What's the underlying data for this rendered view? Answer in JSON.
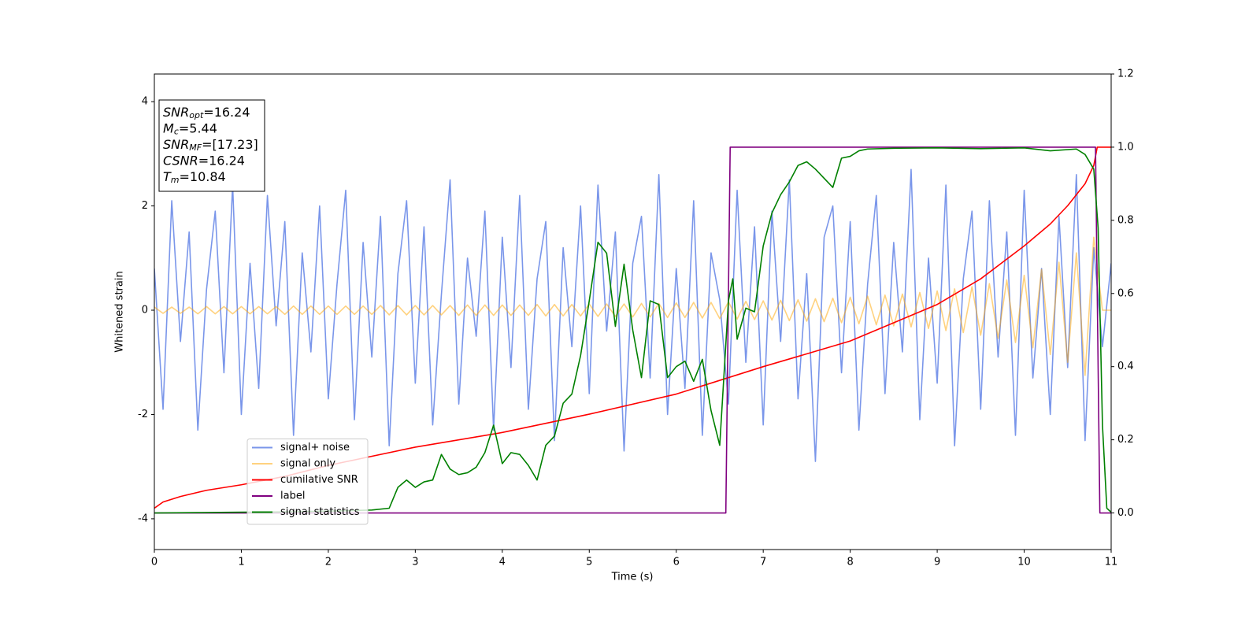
{
  "chart_data": {
    "type": "line",
    "xlabel": "Time (s)",
    "ylabel": "Whitened strain",
    "xlim": [
      0,
      11
    ],
    "ylim": [
      -4.59,
      4.53
    ],
    "y2lim": [
      -0.1,
      1.2
    ],
    "xticks": [
      0,
      1,
      2,
      3,
      4,
      5,
      6,
      7,
      8,
      9,
      10,
      11
    ],
    "yticks": [
      -4,
      -2,
      0,
      2,
      4
    ],
    "y2ticks": [
      {
        "value": 0,
        "label": "0.0"
      },
      0.2,
      0.4,
      0.6,
      0.8,
      {
        "value": 1,
        "label": "1.0"
      },
      1.2
    ],
    "legend_loc": "lower left",
    "annotations": [
      {
        "base": "SNR",
        "sub": "opt",
        "value": "=16.24"
      },
      {
        "base": "M",
        "sub": "c",
        "value": "=5.44"
      },
      {
        "base": "SNR",
        "sub": "MF",
        "value": "=[17.23]"
      },
      {
        "base": "CSNR",
        "value": "=16.24"
      },
      {
        "base": "T",
        "sub": "m",
        "value": "=10.84"
      }
    ],
    "x": [
      0,
      0.1,
      0.2,
      0.3,
      0.4,
      0.5,
      0.6,
      0.7,
      0.8,
      0.9,
      1,
      1.1,
      1.2,
      1.3,
      1.4,
      1.5,
      1.6,
      1.7,
      1.8,
      1.9,
      2,
      2.1,
      2.2,
      2.3,
      2.4,
      2.5,
      2.6,
      2.7,
      2.8,
      2.9,
      3,
      3.1,
      3.2,
      3.3,
      3.4,
      3.5,
      3.6,
      3.7,
      3.8,
      3.9,
      4,
      4.1,
      4.2,
      4.3,
      4.4,
      4.5,
      4.6,
      4.7,
      4.8,
      4.9,
      5,
      5.1,
      5.2,
      5.3,
      5.4,
      5.5,
      5.6,
      5.7,
      5.8,
      5.9,
      6,
      6.1,
      6.2,
      6.3,
      6.4,
      6.5,
      6.6,
      6.7,
      6.8,
      6.9,
      7,
      7.1,
      7.2,
      7.3,
      7.4,
      7.5,
      7.6,
      7.7,
      7.8,
      7.9,
      8,
      8.1,
      8.2,
      8.3,
      8.4,
      8.5,
      8.6,
      8.7,
      8.8,
      8.9,
      9,
      9.1,
      9.2,
      9.3,
      9.4,
      9.5,
      9.6,
      9.7,
      9.8,
      9.9,
      10,
      10.1,
      10.2,
      10.3,
      10.4,
      10.5,
      10.6,
      10.7,
      10.8,
      10.9,
      11
    ],
    "series": [
      {
        "name": "signal+ noise",
        "color": "#4169e1",
        "opacity": 0.7,
        "values": [
          0.8,
          -1.9,
          2.1,
          -0.6,
          1.5,
          -2.3,
          0.4,
          1.9,
          -1.2,
          2.4,
          -2.0,
          0.9,
          -1.5,
          2.2,
          -0.3,
          1.7,
          -2.4,
          1.1,
          -0.8,
          2.0,
          -1.7,
          0.5,
          2.3,
          -2.1,
          1.3,
          -0.9,
          1.8,
          -2.6,
          0.7,
          2.1,
          -1.4,
          1.6,
          -2.2,
          0.3,
          2.5,
          -1.8,
          1.0,
          -0.5,
          1.9,
          -2.3,
          1.4,
          -1.1,
          2.2,
          -1.9,
          0.6,
          1.7,
          -2.5,
          1.2,
          -0.7,
          2.0,
          -1.6,
          2.4,
          -0.4,
          1.5,
          -2.7,
          0.9,
          1.8,
          -1.3,
          2.6,
          -2.0,
          0.8,
          -1.5,
          2.1,
          -2.4,
          1.1,
          0.2,
          -1.8,
          2.3,
          -1.0,
          1.6,
          -2.2,
          1.9,
          -0.6,
          2.5,
          -1.7,
          0.7,
          -2.9,
          1.4,
          2.0,
          -1.2,
          1.7,
          -2.3,
          0.5,
          2.2,
          -1.6,
          1.3,
          -0.8,
          2.7,
          -2.1,
          1.0,
          -1.4,
          2.4,
          -2.6,
          0.6,
          1.9,
          -1.9,
          2.1,
          -0.9,
          1.5,
          -2.4,
          2.3,
          -1.3,
          0.8,
          -2.0,
          1.8,
          -1.1,
          2.6,
          -2.5,
          1.2,
          -0.7,
          0.9
        ]
      },
      {
        "name": "signal only",
        "color": "#ffa500",
        "opacity": 0.5,
        "values": [
          0.06,
          -0.06,
          0.06,
          -0.06,
          0.06,
          -0.07,
          0.07,
          -0.07,
          0.07,
          -0.07,
          0.07,
          -0.07,
          0.07,
          -0.07,
          0.07,
          -0.08,
          0.08,
          -0.08,
          0.08,
          -0.08,
          0.08,
          -0.08,
          0.08,
          -0.08,
          0.08,
          -0.08,
          0.09,
          -0.09,
          0.09,
          -0.09,
          0.09,
          -0.09,
          0.09,
          -0.09,
          0.09,
          -0.1,
          0.1,
          -0.1,
          0.1,
          -0.1,
          0.1,
          -0.1,
          0.1,
          -0.1,
          0.11,
          -0.11,
          0.11,
          -0.11,
          0.11,
          -0.11,
          0.12,
          -0.12,
          0.12,
          -0.12,
          0.12,
          -0.13,
          0.13,
          -0.13,
          0.13,
          -0.14,
          0.14,
          -0.14,
          0.15,
          -0.15,
          0.15,
          -0.16,
          0.16,
          -0.17,
          0.17,
          -0.18,
          0.18,
          -0.19,
          0.19,
          -0.2,
          0.2,
          -0.21,
          0.22,
          -0.22,
          0.23,
          -0.24,
          0.25,
          -0.26,
          0.27,
          -0.28,
          0.29,
          -0.3,
          0.31,
          -0.32,
          0.34,
          -0.35,
          0.37,
          -0.39,
          0.41,
          -0.43,
          0.45,
          -0.48,
          0.51,
          -0.54,
          0.58,
          -0.62,
          0.67,
          -0.72,
          0.78,
          -0.85,
          0.92,
          -1.0,
          1.1,
          -1.25,
          1.4,
          0,
          0
        ]
      },
      {
        "name": "cumilative SNR",
        "color": "#ff0000",
        "axis": "y2",
        "x": [
          0,
          0.1,
          0.3,
          0.6,
          1,
          1.5,
          2,
          3,
          4,
          5,
          6,
          7,
          8,
          9,
          9.5,
          10,
          10.3,
          10.5,
          10.7,
          10.8,
          10.84,
          11
        ],
        "values": [
          0.013,
          0.03,
          0.045,
          0.062,
          0.077,
          0.1,
          0.13,
          0.18,
          0.22,
          0.27,
          0.325,
          0.4,
          0.47,
          0.57,
          0.64,
          0.73,
          0.79,
          0.84,
          0.9,
          0.95,
          1.0,
          1.0
        ]
      },
      {
        "name": "label",
        "color": "#800080",
        "axis": "y2",
        "x": [
          0,
          6.57,
          6.62,
          10.82,
          10.87,
          11
        ],
        "values": [
          0,
          0,
          1,
          1,
          0,
          0
        ]
      },
      {
        "name": "signal statistics",
        "color": "#008000",
        "axis": "y2",
        "x": [
          0,
          0.5,
          1,
          1.5,
          2,
          2.5,
          2.7,
          2.8,
          2.9,
          3,
          3.1,
          3.2,
          3.3,
          3.4,
          3.5,
          3.6,
          3.7,
          3.8,
          3.9,
          4,
          4.1,
          4.2,
          4.3,
          4.4,
          4.5,
          4.6,
          4.7,
          4.8,
          4.9,
          5,
          5.1,
          5.2,
          5.3,
          5.4,
          5.5,
          5.6,
          5.7,
          5.8,
          5.9,
          6,
          6.1,
          6.2,
          6.3,
          6.4,
          6.5,
          6.6,
          6.65,
          6.7,
          6.8,
          6.9,
          7,
          7.1,
          7.2,
          7.3,
          7.4,
          7.5,
          7.6,
          7.7,
          7.8,
          7.9,
          8,
          8.1,
          8.2,
          8.5,
          9,
          9.5,
          10,
          10.3,
          10.6,
          10.7,
          10.8,
          10.85,
          10.9,
          10.95,
          11
        ],
        "values": [
          0,
          0.001,
          0.002,
          0.003,
          0.005,
          0.008,
          0.013,
          0.07,
          0.09,
          0.07,
          0.085,
          0.09,
          0.16,
          0.12,
          0.105,
          0.11,
          0.125,
          0.165,
          0.24,
          0.135,
          0.165,
          0.16,
          0.13,
          0.09,
          0.185,
          0.21,
          0.3,
          0.325,
          0.43,
          0.58,
          0.74,
          0.71,
          0.51,
          0.68,
          0.5,
          0.37,
          0.58,
          0.57,
          0.37,
          0.4,
          0.415,
          0.36,
          0.42,
          0.28,
          0.185,
          0.58,
          0.64,
          0.475,
          0.56,
          0.55,
          0.73,
          0.82,
          0.87,
          0.905,
          0.95,
          0.96,
          0.94,
          0.915,
          0.89,
          0.97,
          0.975,
          0.99,
          0.995,
          0.997,
          0.998,
          0.996,
          0.998,
          0.99,
          0.995,
          0.98,
          0.94,
          0.78,
          0.24,
          0.013,
          0.002
        ]
      }
    ]
  }
}
